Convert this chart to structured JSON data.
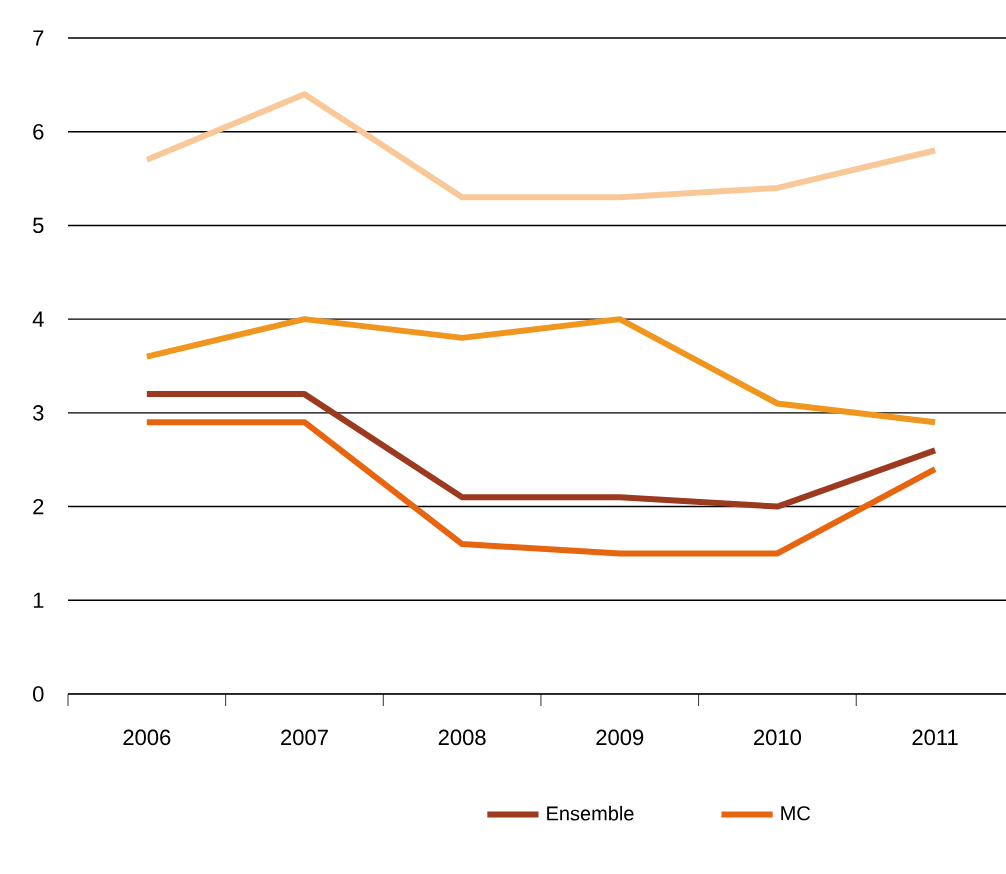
{
  "chart_data": {
    "type": "line",
    "categories": [
      "2006",
      "2007",
      "2008",
      "2009",
      "2010",
      "2011"
    ],
    "series": [
      {
        "name": "Ensemble",
        "color": "#9b3a1e",
        "values": [
          3.2,
          3.2,
          2.1,
          2.1,
          2.0,
          2.6
        ]
      },
      {
        "name": "MC",
        "color": "#e8650f",
        "values": [
          2.9,
          2.9,
          1.6,
          1.5,
          1.5,
          2.4
        ]
      },
      {
        "color": "#f0961e",
        "values": [
          3.6,
          4.0,
          3.8,
          4.0,
          3.1,
          2.9
        ]
      },
      {
        "color": "#f9c898",
        "values": [
          5.7,
          6.4,
          5.3,
          5.3,
          5.4,
          5.8
        ]
      }
    ],
    "ylim": [
      0,
      7
    ],
    "yticks": [
      0,
      1,
      2,
      3,
      4,
      5,
      6,
      7
    ],
    "grid": "y",
    "legend": "bottom",
    "marker": "none",
    "line_style": "solid"
  }
}
